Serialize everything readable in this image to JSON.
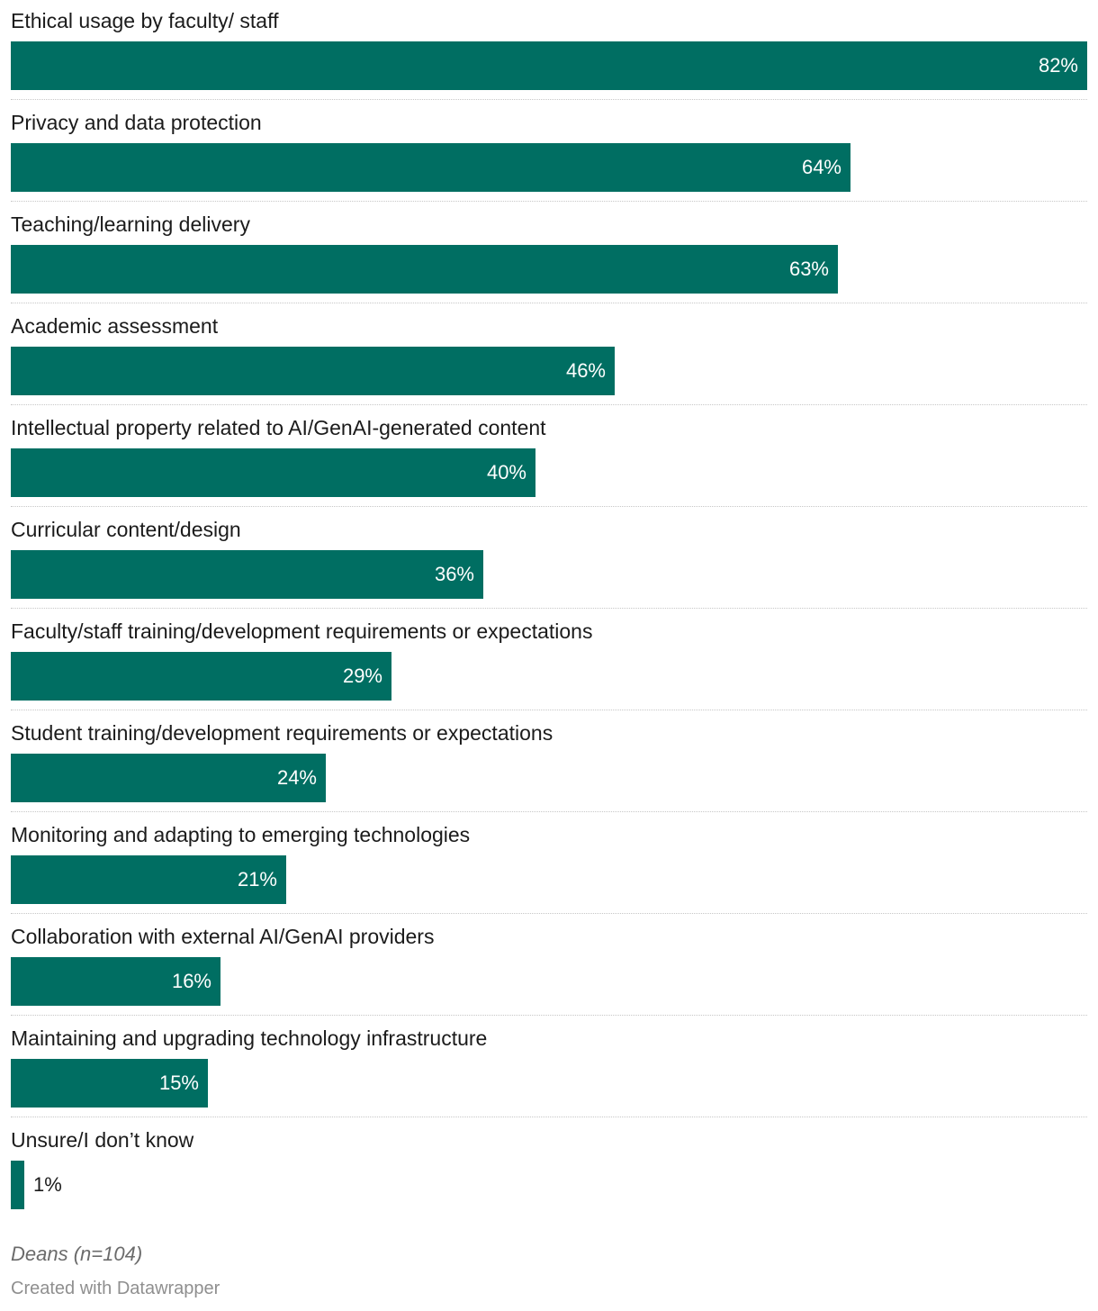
{
  "chart_data": {
    "type": "bar",
    "orientation": "horizontal",
    "categories": [
      "Ethical usage by faculty/ staff",
      "Privacy and data protection",
      "Teaching/learning delivery",
      "Academic assessment",
      "Intellectual property related to AI/GenAI-generated content",
      "Curricular content/design",
      "Faculty/staff training/development requirements or expectations",
      "Student training/development requirements or expectations",
      "Monitoring and adapting to emerging technologies",
      "Collaboration with external AI/GenAI providers",
      "Maintaining and upgrading technology infrastructure",
      "Unsure/I don’t know"
    ],
    "values": [
      82,
      64,
      63,
      46,
      40,
      36,
      29,
      24,
      21,
      16,
      15,
      1
    ],
    "value_labels": [
      "82%",
      "64%",
      "63%",
      "46%",
      "40%",
      "36%",
      "29%",
      "24%",
      "21%",
      "16%",
      "15%",
      "1%"
    ],
    "xlim": [
      0,
      82
    ],
    "grid": false,
    "color": "#006e62"
  },
  "notes": {
    "sample": "Deans (n=104)",
    "credit": "Created with Datawrapper"
  }
}
